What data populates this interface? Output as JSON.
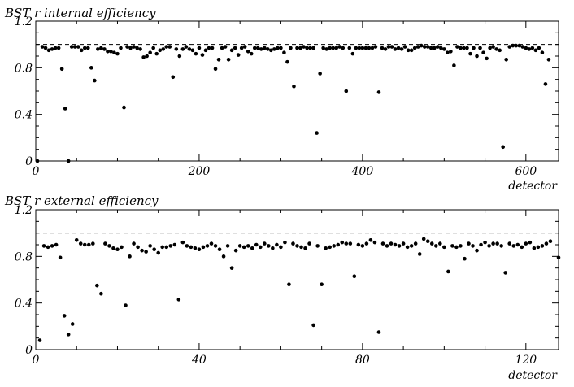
{
  "chart_data": [
    {
      "type": "scatter",
      "title": "BST r internal efficiency",
      "xlabel": "detector",
      "ylabel": "",
      "xlim": [
        0,
        640
      ],
      "ylim": [
        0,
        1.2
      ],
      "xticks": [
        "0",
        "200",
        "400",
        "600"
      ],
      "yticks": [
        "0",
        "0.4",
        "0.8",
        "1.2"
      ],
      "reference_line": 1.0,
      "series": [
        {
          "points": [
            [
              2,
              0.0
            ],
            [
              8,
              0.98
            ],
            [
              12,
              0.97
            ],
            [
              16,
              0.95
            ],
            [
              20,
              0.96
            ],
            [
              24,
              0.97
            ],
            [
              28,
              0.97
            ],
            [
              32,
              0.79
            ],
            [
              36,
              0.45
            ],
            [
              40,
              0.0
            ],
            [
              44,
              0.98
            ],
            [
              48,
              0.98
            ],
            [
              52,
              0.98
            ],
            [
              56,
              0.95
            ],
            [
              60,
              0.97
            ],
            [
              64,
              0.97
            ],
            [
              68,
              0.8
            ],
            [
              72,
              0.69
            ],
            [
              76,
              0.96
            ],
            [
              80,
              0.97
            ],
            [
              84,
              0.96
            ],
            [
              88,
              0.94
            ],
            [
              92,
              0.94
            ],
            [
              96,
              0.93
            ],
            [
              100,
              0.92
            ],
            [
              104,
              0.97
            ],
            [
              108,
              0.46
            ],
            [
              112,
              0.98
            ],
            [
              116,
              0.97
            ],
            [
              120,
              0.98
            ],
            [
              124,
              0.97
            ],
            [
              128,
              0.96
            ],
            [
              132,
              0.89
            ],
            [
              136,
              0.9
            ],
            [
              140,
              0.93
            ],
            [
              144,
              0.97
            ],
            [
              148,
              0.92
            ],
            [
              152,
              0.95
            ],
            [
              156,
              0.96
            ],
            [
              160,
              0.98
            ],
            [
              164,
              0.98
            ],
            [
              168,
              0.72
            ],
            [
              172,
              0.96
            ],
            [
              176,
              0.9
            ],
            [
              180,
              0.96
            ],
            [
              184,
              0.98
            ],
            [
              188,
              0.96
            ],
            [
              192,
              0.95
            ],
            [
              196,
              0.92
            ],
            [
              200,
              0.97
            ],
            [
              204,
              0.91
            ],
            [
              208,
              0.95
            ],
            [
              212,
              0.97
            ],
            [
              216,
              0.97
            ],
            [
              220,
              0.79
            ],
            [
              224,
              0.87
            ],
            [
              228,
              0.97
            ],
            [
              232,
              0.98
            ],
            [
              236,
              0.87
            ],
            [
              240,
              0.95
            ],
            [
              244,
              0.97
            ],
            [
              248,
              0.91
            ],
            [
              252,
              0.97
            ],
            [
              256,
              0.98
            ],
            [
              260,
              0.94
            ],
            [
              264,
              0.92
            ],
            [
              268,
              0.97
            ],
            [
              272,
              0.97
            ],
            [
              276,
              0.96
            ],
            [
              280,
              0.97
            ],
            [
              284,
              0.96
            ],
            [
              288,
              0.95
            ],
            [
              292,
              0.96
            ],
            [
              296,
              0.97
            ],
            [
              300,
              0.97
            ],
            [
              304,
              0.93
            ],
            [
              308,
              0.85
            ],
            [
              312,
              0.97
            ],
            [
              316,
              0.64
            ],
            [
              320,
              0.97
            ],
            [
              324,
              0.97
            ],
            [
              328,
              0.98
            ],
            [
              332,
              0.97
            ],
            [
              336,
              0.97
            ],
            [
              340,
              0.97
            ],
            [
              344,
              0.24
            ],
            [
              348,
              0.75
            ],
            [
              352,
              0.97
            ],
            [
              356,
              0.96
            ],
            [
              360,
              0.97
            ],
            [
              364,
              0.97
            ],
            [
              368,
              0.97
            ],
            [
              372,
              0.98
            ],
            [
              376,
              0.97
            ],
            [
              380,
              0.6
            ],
            [
              384,
              0.97
            ],
            [
              388,
              0.92
            ],
            [
              392,
              0.97
            ],
            [
              396,
              0.97
            ],
            [
              400,
              0.97
            ],
            [
              404,
              0.97
            ],
            [
              408,
              0.97
            ],
            [
              412,
              0.97
            ],
            [
              416,
              0.98
            ],
            [
              420,
              0.59
            ],
            [
              424,
              0.97
            ],
            [
              428,
              0.96
            ],
            [
              432,
              0.98
            ],
            [
              436,
              0.98
            ],
            [
              440,
              0.96
            ],
            [
              444,
              0.97
            ],
            [
              448,
              0.96
            ],
            [
              452,
              0.98
            ],
            [
              456,
              0.95
            ],
            [
              460,
              0.95
            ],
            [
              464,
              0.97
            ],
            [
              468,
              0.98
            ],
            [
              472,
              0.99
            ],
            [
              476,
              0.98
            ],
            [
              480,
              0.98
            ],
            [
              484,
              0.97
            ],
            [
              488,
              0.97
            ],
            [
              492,
              0.98
            ],
            [
              496,
              0.97
            ],
            [
              500,
              0.96
            ],
            [
              504,
              0.93
            ],
            [
              508,
              0.94
            ],
            [
              512,
              0.82
            ],
            [
              516,
              0.98
            ],
            [
              520,
              0.97
            ],
            [
              524,
              0.97
            ],
            [
              528,
              0.97
            ],
            [
              532,
              0.92
            ],
            [
              536,
              0.97
            ],
            [
              540,
              0.9
            ],
            [
              544,
              0.97
            ],
            [
              548,
              0.93
            ],
            [
              552,
              0.88
            ],
            [
              556,
              0.97
            ],
            [
              560,
              0.98
            ],
            [
              564,
              0.96
            ],
            [
              568,
              0.95
            ],
            [
              572,
              0.12
            ],
            [
              576,
              0.87
            ],
            [
              580,
              0.98
            ],
            [
              584,
              0.99
            ],
            [
              588,
              0.99
            ],
            [
              592,
              0.99
            ],
            [
              596,
              0.98
            ],
            [
              600,
              0.97
            ],
            [
              604,
              0.96
            ],
            [
              608,
              0.97
            ],
            [
              612,
              0.95
            ],
            [
              616,
              0.97
            ],
            [
              620,
              0.93
            ],
            [
              624,
              0.66
            ],
            [
              628,
              0.87
            ]
          ]
        }
      ]
    },
    {
      "type": "scatter",
      "title": "BST r external efficiency",
      "xlabel": "detector",
      "ylabel": "",
      "xlim": [
        0,
        128
      ],
      "ylim": [
        0,
        1.2
      ],
      "xticks": [
        "0",
        "40",
        "80",
        "120"
      ],
      "yticks": [
        "0",
        "0.4",
        "0.8",
        "1.2"
      ],
      "reference_line": 1.0,
      "series": [
        {
          "points": [
            [
              1,
              0.08
            ],
            [
              2,
              0.89
            ],
            [
              3,
              0.88
            ],
            [
              4,
              0.89
            ],
            [
              5,
              0.9
            ],
            [
              6,
              0.79
            ],
            [
              7,
              0.29
            ],
            [
              8,
              0.13
            ],
            [
              9,
              0.22
            ],
            [
              10,
              0.94
            ],
            [
              11,
              0.91
            ],
            [
              12,
              0.9
            ],
            [
              13,
              0.9
            ],
            [
              14,
              0.91
            ],
            [
              15,
              0.55
            ],
            [
              16,
              0.48
            ],
            [
              17,
              0.91
            ],
            [
              18,
              0.89
            ],
            [
              19,
              0.87
            ],
            [
              20,
              0.86
            ],
            [
              21,
              0.88
            ],
            [
              22,
              0.38
            ],
            [
              23,
              0.8
            ],
            [
              24,
              0.91
            ],
            [
              25,
              0.88
            ],
            [
              26,
              0.85
            ],
            [
              27,
              0.84
            ],
            [
              28,
              0.89
            ],
            [
              29,
              0.86
            ],
            [
              30,
              0.83
            ],
            [
              31,
              0.88
            ],
            [
              32,
              0.88
            ],
            [
              33,
              0.89
            ],
            [
              34,
              0.9
            ],
            [
              35,
              0.43
            ],
            [
              36,
              0.92
            ],
            [
              37,
              0.89
            ],
            [
              38,
              0.88
            ],
            [
              39,
              0.87
            ],
            [
              40,
              0.86
            ],
            [
              41,
              0.88
            ],
            [
              42,
              0.89
            ],
            [
              43,
              0.91
            ],
            [
              44,
              0.89
            ],
            [
              45,
              0.86
            ],
            [
              46,
              0.8
            ],
            [
              47,
              0.89
            ],
            [
              48,
              0.7
            ],
            [
              49,
              0.85
            ],
            [
              50,
              0.89
            ],
            [
              51,
              0.88
            ],
            [
              52,
              0.89
            ],
            [
              53,
              0.87
            ],
            [
              54,
              0.9
            ],
            [
              55,
              0.88
            ],
            [
              56,
              0.91
            ],
            [
              57,
              0.89
            ],
            [
              58,
              0.87
            ],
            [
              59,
              0.9
            ],
            [
              60,
              0.88
            ],
            [
              61,
              0.92
            ],
            [
              62,
              0.56
            ],
            [
              63,
              0.91
            ],
            [
              64,
              0.89
            ],
            [
              65,
              0.88
            ],
            [
              66,
              0.87
            ],
            [
              67,
              0.91
            ],
            [
              68,
              0.21
            ],
            [
              69,
              0.89
            ],
            [
              70,
              0.56
            ],
            [
              71,
              0.87
            ],
            [
              72,
              0.88
            ],
            [
              73,
              0.89
            ],
            [
              74,
              0.9
            ],
            [
              75,
              0.92
            ],
            [
              76,
              0.91
            ],
            [
              77,
              0.91
            ],
            [
              78,
              0.63
            ],
            [
              79,
              0.9
            ],
            [
              80,
              0.89
            ],
            [
              81,
              0.91
            ],
            [
              82,
              0.94
            ],
            [
              83,
              0.92
            ],
            [
              84,
              0.15
            ],
            [
              85,
              0.91
            ],
            [
              86,
              0.89
            ],
            [
              87,
              0.91
            ],
            [
              88,
              0.9
            ],
            [
              89,
              0.89
            ],
            [
              90,
              0.91
            ],
            [
              91,
              0.88
            ],
            [
              92,
              0.89
            ],
            [
              93,
              0.91
            ],
            [
              94,
              0.82
            ],
            [
              95,
              0.95
            ],
            [
              96,
              0.93
            ],
            [
              97,
              0.91
            ],
            [
              98,
              0.89
            ],
            [
              99,
              0.91
            ],
            [
              100,
              0.88
            ],
            [
              101,
              0.67
            ],
            [
              102,
              0.89
            ],
            [
              103,
              0.88
            ],
            [
              104,
              0.89
            ],
            [
              105,
              0.78
            ],
            [
              106,
              0.91
            ],
            [
              107,
              0.89
            ],
            [
              108,
              0.85
            ],
            [
              109,
              0.9
            ],
            [
              110,
              0.92
            ],
            [
              111,
              0.89
            ],
            [
              112,
              0.91
            ],
            [
              113,
              0.91
            ],
            [
              114,
              0.89
            ],
            [
              115,
              0.66
            ],
            [
              116,
              0.91
            ],
            [
              117,
              0.89
            ],
            [
              118,
              0.9
            ],
            [
              119,
              0.88
            ],
            [
              120,
              0.91
            ],
            [
              121,
              0.92
            ],
            [
              122,
              0.87
            ],
            [
              123,
              0.88
            ],
            [
              124,
              0.89
            ],
            [
              125,
              0.91
            ],
            [
              126,
              0.93
            ],
            [
              128,
              0.79
            ]
          ]
        }
      ]
    }
  ]
}
